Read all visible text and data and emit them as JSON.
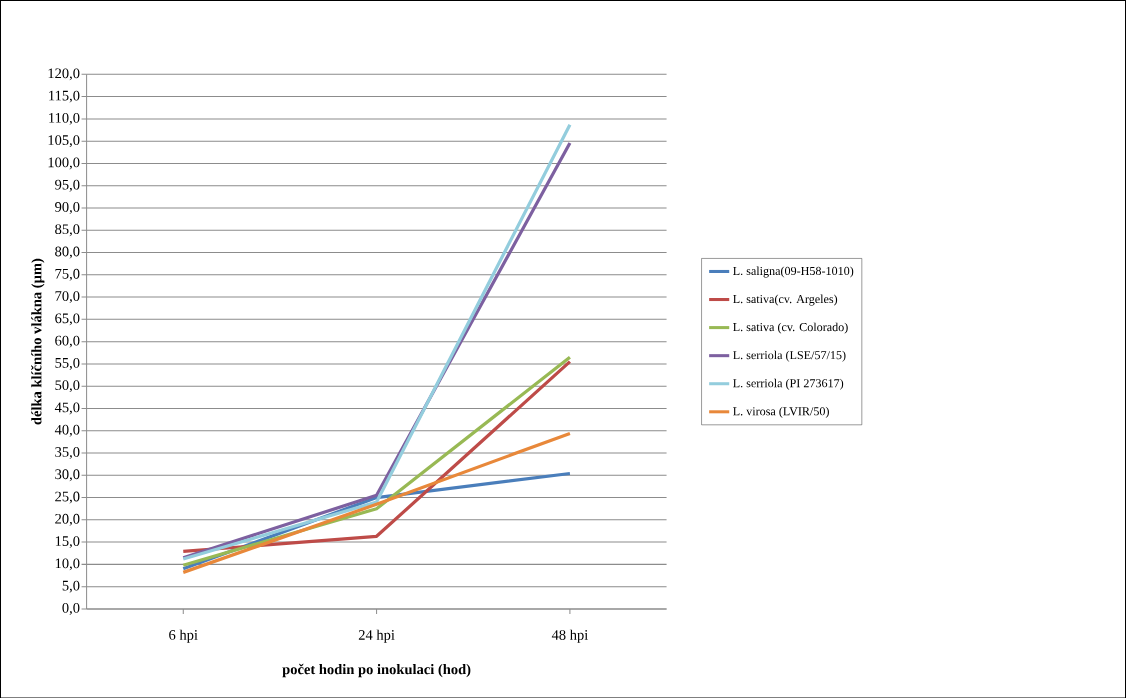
{
  "chart_data": {
    "type": "line",
    "xlabel": "počet hodin po inokulaci (hod)",
    "ylabel": "délka klíčního vlákna (µm)",
    "categories": [
      "6 hpi",
      "24 hpi",
      "48 hpi"
    ],
    "series": [
      {
        "name": "L. saligna(09-H58-1010)",
        "color": "#4a7ebb",
        "values": [
          9.0,
          25.0,
          30.4
        ]
      },
      {
        "name": "L. sativa(cv. Argeles)",
        "color": "#be4b48",
        "values": [
          12.9,
          16.3,
          55.5
        ]
      },
      {
        "name": "L. sativa (cv. Colorado)",
        "color": "#98b954",
        "values": [
          9.8,
          22.5,
          56.5
        ]
      },
      {
        "name": "L. serriola (LSE/57/15)",
        "color": "#7d60a0",
        "values": [
          11.5,
          25.5,
          104.6
        ]
      },
      {
        "name": "L. serriola (PI 273617)",
        "color": "#93cddd",
        "values": [
          11.2,
          24.0,
          108.7
        ]
      },
      {
        "name": "L. virosa (LVIR/50)",
        "color": "#e8883a",
        "values": [
          8.2,
          23.5,
          39.4
        ]
      }
    ],
    "ylim": [
      0,
      120
    ],
    "yticks": [
      {
        "value": 0,
        "label": "0,0"
      },
      {
        "value": 5,
        "label": "5,0"
      },
      {
        "value": 10,
        "label": "10,0"
      },
      {
        "value": 15,
        "label": "15,0"
      },
      {
        "value": 20,
        "label": "20,0"
      },
      {
        "value": 25,
        "label": "25,0"
      },
      {
        "value": 30,
        "label": "30,0"
      },
      {
        "value": 35,
        "label": "35,0"
      },
      {
        "value": 40,
        "label": "40,0"
      },
      {
        "value": 45,
        "label": "45,0"
      },
      {
        "value": 50,
        "label": "50,0"
      },
      {
        "value": 55,
        "label": "55,0"
      },
      {
        "value": 60,
        "label": "60,0"
      },
      {
        "value": 65,
        "label": "65,0"
      },
      {
        "value": 70,
        "label": "70,0"
      },
      {
        "value": 75,
        "label": "75,0"
      },
      {
        "value": 80,
        "label": "80,0"
      },
      {
        "value": 85,
        "label": "85,0"
      },
      {
        "value": 90,
        "label": "90,0"
      },
      {
        "value": 95,
        "label": "95,0"
      },
      {
        "value": 100,
        "label": "100,0"
      },
      {
        "value": 105,
        "label": "105,0"
      },
      {
        "value": 110,
        "label": "110,0"
      },
      {
        "value": 115,
        "label": "115,0"
      },
      {
        "value": 120,
        "label": "120,0"
      }
    ],
    "grid": "y",
    "legend": "right",
    "marker": "none",
    "line_style": "solid"
  }
}
